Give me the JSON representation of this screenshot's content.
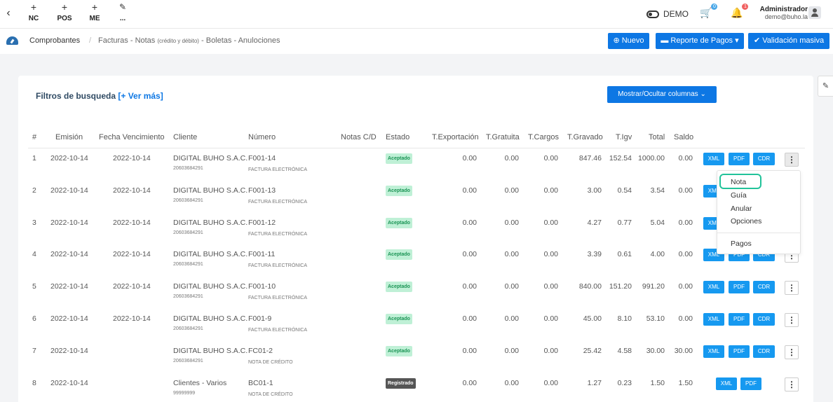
{
  "topbar": {
    "quick_actions": [
      {
        "label": "NC",
        "icon": "plus-icon"
      },
      {
        "label": "POS",
        "icon": "plus-icon"
      },
      {
        "label": "ME",
        "icon": "plus-icon"
      },
      {
        "label": "...",
        "icon": "pencil-icon"
      }
    ],
    "demo_label": "DEMO",
    "cart_count": "0",
    "notif_count": "1",
    "user_name": "Administrador",
    "user_email": "demo@buho.la"
  },
  "breadcrumb": {
    "root": "Comprobantes",
    "current_a": "Facturas - Notas ",
    "current_small": "(crédito y débito)",
    "current_b": " - Boletas - Anulociones"
  },
  "actions": {
    "nuevo": "Nuevo",
    "reporte": "Reporte de Pagos",
    "validacion": "Validación masiva"
  },
  "filters": {
    "title": "Filtros de busqueda",
    "more": "[+ Ver más]",
    "toggle_columns": "Mostrar/Ocultar columnas"
  },
  "table": {
    "headers": [
      "#",
      "Emisión",
      "Fecha Vencimiento",
      "Cliente",
      "Número",
      "Notas C/D",
      "Estado",
      "T.Exportación",
      "T.Gratuita",
      "T.Cargos",
      "T.Gravado",
      "T.Igv",
      "Total",
      "Saldo"
    ],
    "rows": [
      {
        "n": "1",
        "emision": "2022-10-14",
        "venc": "2022-10-14",
        "cliente": "DIGITAL BUHO S.A.C.",
        "ruc": "20603684291",
        "numero": "F001-14",
        "tipo": "FACTURA ELECTRÓNICA",
        "estado": "Aceptado",
        "exp": "0.00",
        "grat": "0.00",
        "carg": "0.00",
        "grav": "847.46",
        "igv": "152.54",
        "total": "1000.00",
        "saldo": "0.00"
      },
      {
        "n": "2",
        "emision": "2022-10-14",
        "venc": "2022-10-14",
        "cliente": "DIGITAL BUHO S.A.C.",
        "ruc": "20603684291",
        "numero": "F001-13",
        "tipo": "FACTURA ELECTRÓNICA",
        "estado": "Aceptado",
        "exp": "0.00",
        "grat": "0.00",
        "carg": "0.00",
        "grav": "3.00",
        "igv": "0.54",
        "total": "3.54",
        "saldo": "0.00"
      },
      {
        "n": "3",
        "emision": "2022-10-14",
        "venc": "2022-10-14",
        "cliente": "DIGITAL BUHO S.A.C.",
        "ruc": "20603684291",
        "numero": "F001-12",
        "tipo": "FACTURA ELECTRÓNICA",
        "estado": "Aceptado",
        "exp": "0.00",
        "grat": "0.00",
        "carg": "0.00",
        "grav": "4.27",
        "igv": "0.77",
        "total": "5.04",
        "saldo": "0.00"
      },
      {
        "n": "4",
        "emision": "2022-10-14",
        "venc": "2022-10-14",
        "cliente": "DIGITAL BUHO S.A.C.",
        "ruc": "20603684291",
        "numero": "F001-11",
        "tipo": "FACTURA ELECTRÓNICA",
        "estado": "Aceptado",
        "exp": "0.00",
        "grat": "0.00",
        "carg": "0.00",
        "grav": "3.39",
        "igv": "0.61",
        "total": "4.00",
        "saldo": "0.00"
      },
      {
        "n": "5",
        "emision": "2022-10-14",
        "venc": "2022-10-14",
        "cliente": "DIGITAL BUHO S.A.C.",
        "ruc": "20603684291",
        "numero": "F001-10",
        "tipo": "FACTURA ELECTRÓNICA",
        "estado": "Aceptado",
        "exp": "0.00",
        "grat": "0.00",
        "carg": "0.00",
        "grav": "840.00",
        "igv": "151.20",
        "total": "991.20",
        "saldo": "0.00"
      },
      {
        "n": "6",
        "emision": "2022-10-14",
        "venc": "2022-10-14",
        "cliente": "DIGITAL BUHO S.A.C.",
        "ruc": "20603684291",
        "numero": "F001-9",
        "tipo": "FACTURA ELECTRÓNICA",
        "estado": "Aceptado",
        "exp": "0.00",
        "grat": "0.00",
        "carg": "0.00",
        "grav": "45.00",
        "igv": "8.10",
        "total": "53.10",
        "saldo": "0.00"
      },
      {
        "n": "7",
        "emision": "2022-10-14",
        "venc": "",
        "cliente": "DIGITAL BUHO S.A.C.",
        "ruc": "20603684291",
        "numero": "FC01-2",
        "tipo": "NOTA DE CRÉDITO",
        "estado": "Aceptado",
        "exp": "0.00",
        "grat": "0.00",
        "carg": "0.00",
        "grav": "25.42",
        "igv": "4.58",
        "total": "30.00",
        "saldo": "30.00"
      },
      {
        "n": "8",
        "emision": "2022-10-14",
        "venc": "",
        "cliente": "Clientes - Varios",
        "ruc": "99999999",
        "numero": "BC01-1",
        "tipo": "NOTA DE CRÉDITO",
        "estado": "Registrado",
        "exp": "0.00",
        "grat": "0.00",
        "carg": "0.00",
        "grav": "1.27",
        "igv": "0.23",
        "total": "1.50",
        "saldo": "1.50"
      }
    ],
    "btn_xml": "XML",
    "btn_pdf": "PDF",
    "btn_cdr": "CDR"
  },
  "row_menu": {
    "items": [
      "Nota",
      "Guía",
      "Anular",
      "Opciones",
      "Pagos"
    ]
  },
  "colors": {
    "primary": "#0d77e4",
    "doc_button": "#1699f0",
    "accepted_bg": "#bff0d6",
    "accepted_text": "#1b9455",
    "registered_bg": "#555555",
    "highlight_ring": "#22c39a"
  }
}
